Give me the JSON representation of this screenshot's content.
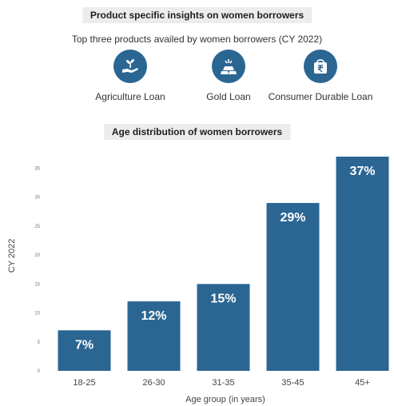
{
  "section_1": {
    "title": "Product specific insights on women borrowers",
    "subtitle": "Top three products availed by women borrowers (CY 2022)",
    "products": [
      {
        "label": "Agriculture Loan",
        "icon": "hand-plant-icon"
      },
      {
        "label": "Gold Loan",
        "icon": "gold-bars-icon"
      },
      {
        "label": "Consumer Durable Loan",
        "icon": "rupee-bag-icon"
      }
    ]
  },
  "section_2": {
    "title": "Age distribution of women borrowers"
  },
  "colors": {
    "bar": "#2b6693",
    "icon_bg": "#2b6693",
    "title_band": "#ececec"
  },
  "chart_data": {
    "type": "bar",
    "title": "Age distribution of women borrowers",
    "categories": [
      "18-25",
      "26-30",
      "31-35",
      "35-45",
      "45+"
    ],
    "values": [
      7,
      12,
      15,
      29,
      37
    ],
    "data_labels": [
      "7%",
      "12%",
      "15%",
      "29%",
      "37%"
    ],
    "xlabel": "Age group (in years)",
    "ylabel": "CY 2022",
    "ylim": [
      0,
      37
    ],
    "yticks": [
      0,
      5,
      10,
      15,
      20,
      25,
      30,
      35
    ],
    "grid": false,
    "legend": "none"
  }
}
